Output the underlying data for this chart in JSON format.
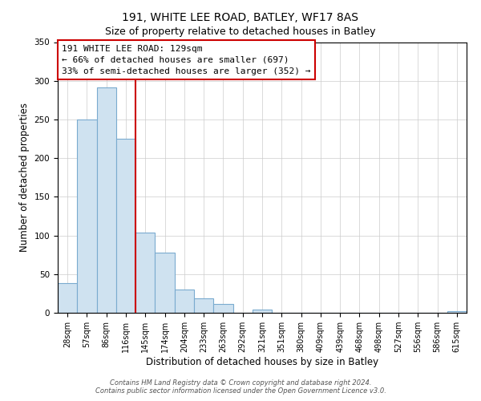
{
  "title": "191, WHITE LEE ROAD, BATLEY, WF17 8AS",
  "subtitle": "Size of property relative to detached houses in Batley",
  "xlabel": "Distribution of detached houses by size in Batley",
  "ylabel": "Number of detached properties",
  "bar_labels": [
    "28sqm",
    "57sqm",
    "86sqm",
    "116sqm",
    "145sqm",
    "174sqm",
    "204sqm",
    "233sqm",
    "263sqm",
    "292sqm",
    "321sqm",
    "351sqm",
    "380sqm",
    "409sqm",
    "439sqm",
    "468sqm",
    "498sqm",
    "527sqm",
    "556sqm",
    "586sqm",
    "615sqm"
  ],
  "bar_values": [
    38,
    250,
    291,
    225,
    104,
    78,
    30,
    19,
    11,
    0,
    4,
    0,
    0,
    0,
    0,
    0,
    0,
    0,
    0,
    0,
    2
  ],
  "bar_color": "#cfe2f0",
  "bar_edge_color": "#7aabcf",
  "vline_x": 3.5,
  "vline_color": "#cc0000",
  "annotation_title": "191 WHITE LEE ROAD: 129sqm",
  "annotation_line1": "← 66% of detached houses are smaller (697)",
  "annotation_line2": "33% of semi-detached houses are larger (352) →",
  "ylim": [
    0,
    350
  ],
  "yticks": [
    0,
    50,
    100,
    150,
    200,
    250,
    300,
    350
  ],
  "footer1": "Contains HM Land Registry data © Crown copyright and database right 2024.",
  "footer2": "Contains public sector information licensed under the Open Government Licence v3.0.",
  "title_fontsize": 10,
  "axis_label_fontsize": 8.5,
  "tick_fontsize": 7,
  "annotation_fontsize": 8,
  "footer_fontsize": 6
}
